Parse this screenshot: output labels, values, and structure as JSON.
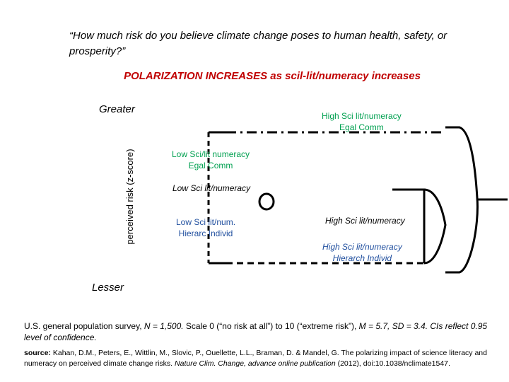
{
  "question": "“How much risk do you believe climate change poses to human health, safety, or prosperity?”",
  "headline": "POLARIZATION INCREASES as scil-lit/numeracy increases",
  "axis": {
    "ylabel": "perceived risk (z-score)",
    "top": "Greater",
    "bottom": "Lesser"
  },
  "labels": {
    "high_egal": [
      "High Sci lit/numeracy",
      "Egal Comm"
    ],
    "low_egal": [
      "Low  Sci/lit numeracy",
      "Egal Comm"
    ],
    "low_mid": "Low Sci lit/numeracy",
    "low_hier": [
      "Low Sci lit/num.",
      "Hierarc Individ"
    ],
    "high_mid": "High Sci lit/numeracy",
    "high_hier": [
      "High Sci lit/numeracy",
      "Hierarch Individ"
    ]
  },
  "colors": {
    "egal": "#00a050",
    "hier": "#1f4e9e",
    "headline": "#c00000"
  },
  "note": {
    "prefix": "U.S. general population survey, ",
    "n": "N = 1,500. ",
    "scale": " Scale 0 (“no risk at all”) to 10 (“extreme risk”), ",
    "m": "M = 5.7, ",
    "sd": "SD = 3.4. CIs reflect 0.95 level of confidence."
  },
  "source": {
    "label": "source:",
    "text": " Kahan, D.M., Peters, E., Wittlin, M., Slovic, P., Ouellette, L.L., Braman, D. & Mandel, G. The polarizing impact of science literacy and numeracy on perceived climate change risks. ",
    "journal": "Nature Clim. Change, advance online publication",
    "tail": " (2012), doi:10.1038/nclimate1547."
  }
}
